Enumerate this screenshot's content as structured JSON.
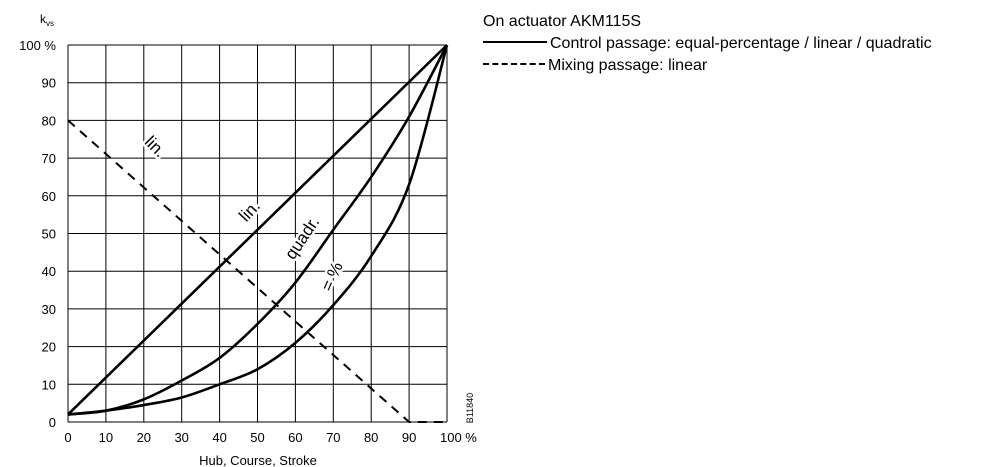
{
  "chart_data": {
    "type": "line",
    "y_axis_title": "k",
    "y_axis_title_subscript": "vs",
    "xlabel": "Hub, Course, Stroke",
    "xlim": [
      0,
      100
    ],
    "ylim": [
      0,
      100
    ],
    "x_ticks": [
      "0",
      "10",
      "20",
      "30",
      "40",
      "50",
      "60",
      "70",
      "80",
      "90",
      "100 %"
    ],
    "y_ticks": [
      "0",
      "10",
      "20",
      "30",
      "40",
      "50",
      "60",
      "70",
      "80",
      "90",
      "100 %"
    ],
    "grid": true,
    "series": [
      {
        "name": "lin.",
        "style": "solid",
        "x": [
          0,
          100
        ],
        "y": [
          2,
          100
        ]
      },
      {
        "name": "quadr.",
        "style": "solid",
        "x": [
          0,
          10,
          20,
          30,
          40,
          50,
          60,
          70,
          80,
          90,
          100
        ],
        "y": [
          2,
          3,
          6,
          11,
          17,
          26,
          37,
          51,
          65,
          81,
          100
        ]
      },
      {
        "name": "= %",
        "style": "solid",
        "x": [
          0,
          10,
          20,
          30,
          40,
          50,
          60,
          70,
          80,
          90,
          100
        ],
        "y": [
          2,
          3,
          4.5,
          6.5,
          10,
          14,
          21,
          31,
          44,
          63,
          100
        ]
      },
      {
        "name": "lin.",
        "style": "dashed",
        "x": [
          0,
          90,
          100
        ],
        "y": [
          80,
          0,
          0
        ]
      }
    ],
    "annotations": [
      {
        "text": "lin.",
        "x": 49,
        "y": 55,
        "rotate": -47
      },
      {
        "text": "quadr.",
        "x": 63,
        "y": 48,
        "rotate": -56
      },
      {
        "text": "= %",
        "x": 71,
        "y": 38,
        "rotate": -66
      },
      {
        "text": "lin.",
        "x": 22,
        "y": 72,
        "rotate": 45
      }
    ],
    "figure_code": "B11840"
  },
  "legend": {
    "title": "On actuator AKM115S",
    "solid_label": "Control passage: equal-percentage / linear / quadratic",
    "dashed_label": "Mixing passage: linear"
  }
}
